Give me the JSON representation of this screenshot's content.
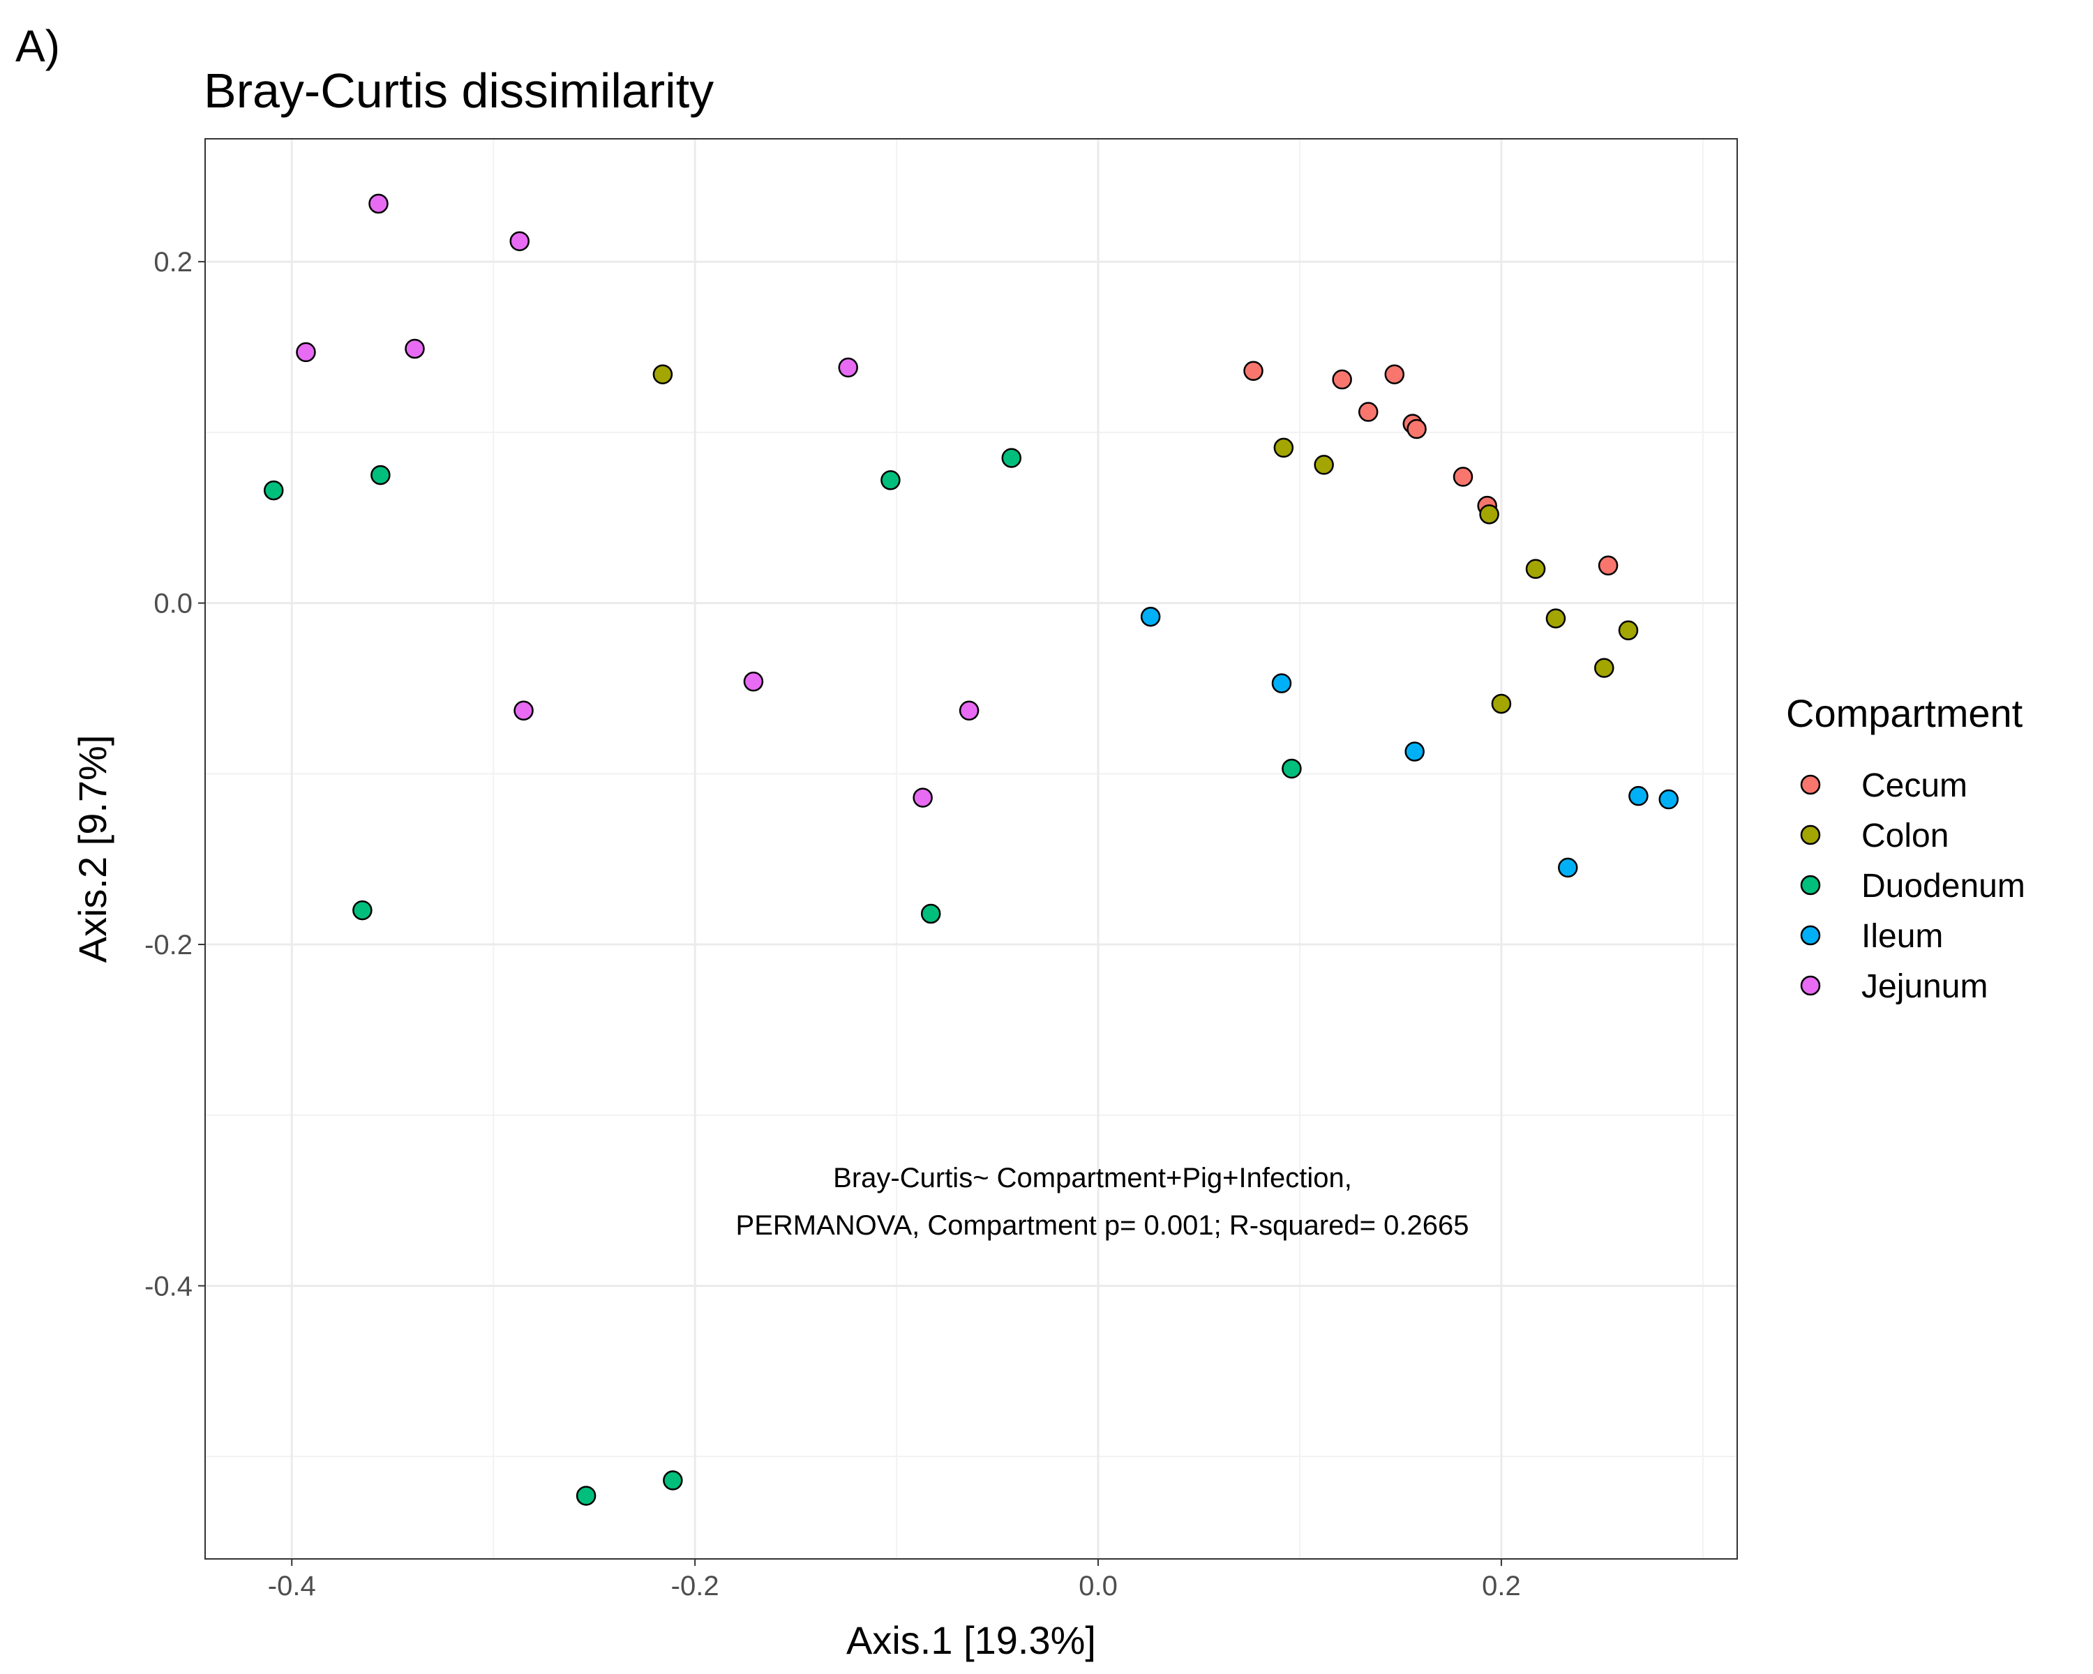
{
  "panel_label": "A)",
  "chart_data": {
    "type": "scatter",
    "title": "Bray-Curtis dissimilarity",
    "xlabel": "Axis.1   [19.3%]",
    "ylabel": "Axis.2   [9.7%]",
    "xlim": [
      -0.443,
      0.317
    ],
    "ylim": [
      -0.56,
      0.272
    ],
    "x_ticks": [
      -0.4,
      -0.2,
      0.0,
      0.2
    ],
    "x_tick_labels": [
      "-0.4",
      "-0.2",
      "0.0",
      "0.2"
    ],
    "y_ticks": [
      0.2,
      0.0,
      -0.2,
      -0.4
    ],
    "y_tick_labels": [
      "0.2",
      "0.0",
      "-0.2",
      "-0.4"
    ],
    "grid": true,
    "legend": {
      "title": "Compartment",
      "position": "right"
    },
    "annotation": [
      "Bray-Curtis~ Compartment+Pig+Infection,",
      "PERMANOVA, Compartment p= 0.001; R-squared= 0.2665"
    ],
    "series": [
      {
        "name": "Cecum",
        "color": "#F8766D",
        "points": [
          [
            0.077,
            0.136
          ],
          [
            0.121,
            0.131
          ],
          [
            0.147,
            0.134
          ],
          [
            0.134,
            0.112
          ],
          [
            0.156,
            0.105
          ],
          [
            0.158,
            0.102
          ],
          [
            0.181,
            0.074
          ],
          [
            0.193,
            0.057
          ],
          [
            0.253,
            0.022
          ]
        ]
      },
      {
        "name": "Colon",
        "color": "#A3A500",
        "points": [
          [
            -0.216,
            0.134
          ],
          [
            0.092,
            0.091
          ],
          [
            0.112,
            0.081
          ],
          [
            0.194,
            0.052
          ],
          [
            0.217,
            0.02
          ],
          [
            0.227,
            -0.009
          ],
          [
            0.263,
            -0.016
          ],
          [
            0.251,
            -0.038
          ],
          [
            0.2,
            -0.059
          ]
        ]
      },
      {
        "name": "Duodenum",
        "color": "#00BF7D",
        "points": [
          [
            -0.409,
            0.066
          ],
          [
            -0.356,
            0.075
          ],
          [
            -0.103,
            0.072
          ],
          [
            -0.043,
            0.085
          ],
          [
            0.096,
            -0.097
          ],
          [
            -0.365,
            -0.18
          ],
          [
            -0.083,
            -0.182
          ],
          [
            -0.254,
            -0.523
          ],
          [
            -0.211,
            -0.514
          ]
        ]
      },
      {
        "name": "Ileum",
        "color": "#00B0F6",
        "points": [
          [
            0.026,
            -0.008
          ],
          [
            0.091,
            -0.047
          ],
          [
            0.157,
            -0.087
          ],
          [
            0.268,
            -0.113
          ],
          [
            0.283,
            -0.115
          ],
          [
            0.233,
            -0.155
          ]
        ]
      },
      {
        "name": "Jejunum",
        "color": "#E76BF3",
        "points": [
          [
            -0.357,
            0.234
          ],
          [
            -0.287,
            0.212
          ],
          [
            -0.393,
            0.147
          ],
          [
            -0.339,
            0.149
          ],
          [
            -0.124,
            0.138
          ],
          [
            -0.171,
            -0.046
          ],
          [
            -0.285,
            -0.063
          ],
          [
            -0.064,
            -0.063
          ],
          [
            -0.087,
            -0.114
          ]
        ]
      }
    ]
  }
}
